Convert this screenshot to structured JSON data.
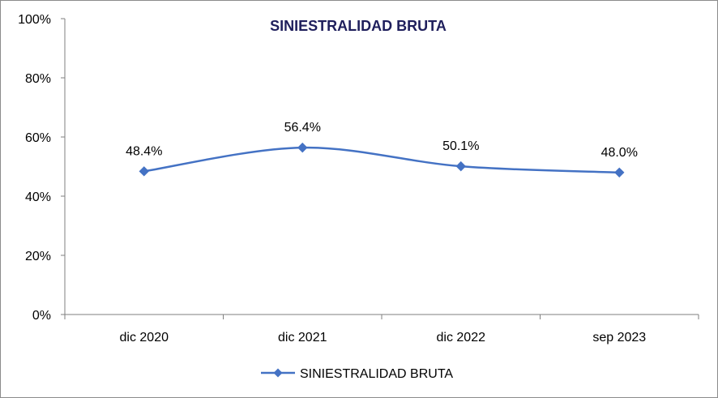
{
  "chart_data": {
    "type": "line",
    "title": "SINIESTRALIDAD BRUTA",
    "categories": [
      "dic 2020",
      "dic 2021",
      "dic 2022",
      "sep 2023"
    ],
    "series": [
      {
        "name": "SINIESTRALIDAD BRUTA",
        "values": [
          48.4,
          56.4,
          50.1,
          48.0
        ],
        "labels": [
          "48.4%",
          "56.4%",
          "50.1%",
          "48.0%"
        ],
        "color": "#4472c4",
        "marker": "diamond",
        "smooth": true
      }
    ],
    "y_ticks": [
      0,
      20,
      40,
      60,
      80,
      100
    ],
    "y_tick_labels": [
      "0%",
      "20%",
      "40%",
      "60%",
      "80%",
      "100%"
    ],
    "ylim": [
      0,
      100
    ],
    "grid": false,
    "legend_position": "bottom"
  }
}
